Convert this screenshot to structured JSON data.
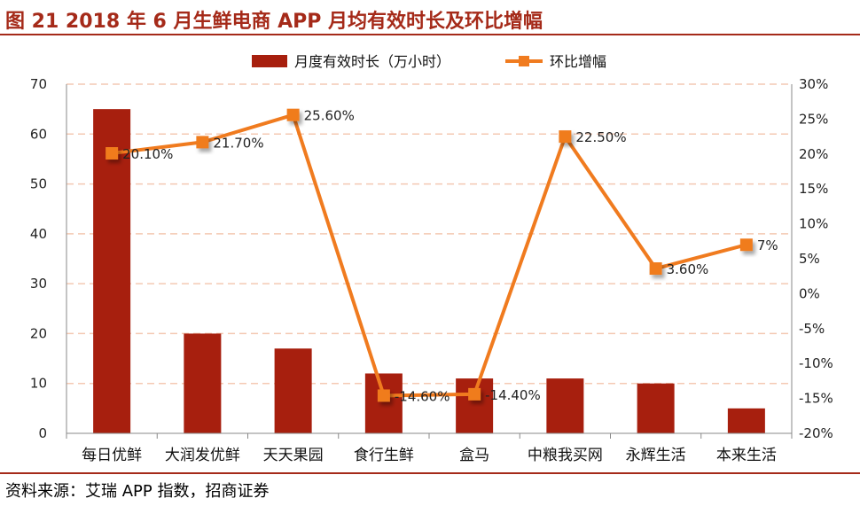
{
  "title": "图 21 2018 年 6 月生鲜电商 APP 月均有效时长及环比增幅",
  "source": "资料来源：艾瑞 APP 指数，招商证券",
  "colors": {
    "bar": "#a71f0e",
    "line": "#f07b1f",
    "grid": "#f4c9b3",
    "title": "#a52a19"
  },
  "chart_data": {
    "type": "bar+line",
    "categories": [
      "每日优鲜",
      "大润发优鲜",
      "天天果园",
      "食行生鲜",
      "盒马",
      "中粮我买网",
      "永辉生活",
      "本来生活"
    ],
    "series": [
      {
        "name": "月度有效时长（万小时）",
        "type": "bar",
        "axis": "left",
        "values": [
          65,
          20,
          17,
          12,
          11,
          11,
          10,
          5
        ]
      },
      {
        "name": "环比增幅",
        "type": "line",
        "axis": "right",
        "values": [
          20.1,
          21.7,
          25.6,
          -14.6,
          -14.4,
          22.5,
          3.6,
          7
        ],
        "labels": [
          "20.10%",
          "21.70%",
          "25.60%",
          "-14.60%",
          "-14.40%",
          "22.50%",
          "3.60%",
          "7%"
        ]
      }
    ],
    "left_axis": {
      "ylim": [
        0,
        70
      ],
      "ticks": [
        "0",
        "10",
        "20",
        "30",
        "40",
        "50",
        "60",
        "70"
      ]
    },
    "right_axis": {
      "ylim": [
        -20,
        30
      ],
      "ticks": [
        "-20%",
        "-15%",
        "-10%",
        "-5%",
        "0%",
        "5%",
        "10%",
        "15%",
        "20%",
        "25%",
        "30%"
      ]
    },
    "legend_position": "top-center",
    "grid": "dashed horizontal"
  }
}
